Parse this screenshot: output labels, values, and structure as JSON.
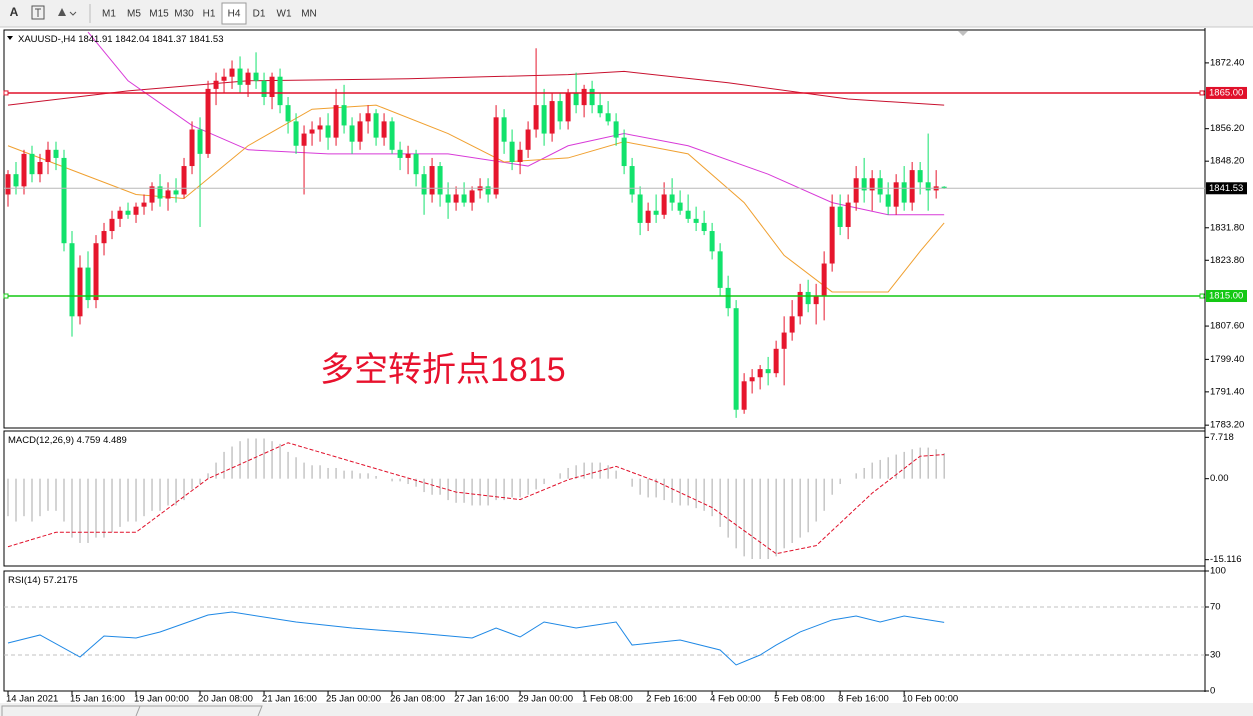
{
  "toolbar": {
    "text_tool": "A",
    "timeframes": [
      "M1",
      "M5",
      "M15",
      "M30",
      "H1",
      "H4",
      "D1",
      "W1",
      "MN"
    ],
    "active_index": 5
  },
  "chart_data": [
    {
      "type": "candlestick",
      "title": "XAUUSD-,H4",
      "annotation": "多空转折点1815",
      "up_color": "#e6162d",
      "down_color": "#12e26c",
      "xlim": [
        -0.5,
        149.6
      ],
      "ylim": [
        1782.5,
        1880.5
      ],
      "yticks": [
        {
          "value": 1872.4,
          "label": "1872.40"
        },
        {
          "value": 1856.2,
          "label": "1856.20"
        },
        {
          "value": 1848.2,
          "label": "1848.20"
        },
        {
          "value": 1831.8,
          "label": "1831.80"
        },
        {
          "value": 1823.8,
          "label": "1823.80"
        },
        {
          "value": 1807.6,
          "label": "1807.60"
        },
        {
          "value": 1799.4,
          "label": "1799.40"
        },
        {
          "value": 1791.4,
          "label": "1791.40"
        },
        {
          "value": 1783.2,
          "label": "1783.20"
        }
      ],
      "grid": false,
      "hlines": [
        {
          "value": 1865,
          "label": "1865.00",
          "color": "#e0102a"
        },
        {
          "value": 1815,
          "label": "1815.00",
          "color": "#14c814"
        }
      ],
      "last_price_color": "#b8b8b8",
      "ohlc": [
        [
          1840,
          1846,
          1837,
          1845
        ],
        [
          1845,
          1848,
          1840,
          1842
        ],
        [
          1842,
          1851,
          1840,
          1850
        ],
        [
          1850,
          1852,
          1843,
          1845
        ],
        [
          1845,
          1850,
          1843,
          1848
        ],
        [
          1848,
          1853,
          1845,
          1851
        ],
        [
          1851,
          1853,
          1846,
          1849
        ],
        [
          1849,
          1851,
          1826,
          1828
        ],
        [
          1828,
          1831,
          1805,
          1810
        ],
        [
          1810,
          1825,
          1808,
          1822
        ],
        [
          1822,
          1826,
          1812,
          1814
        ],
        [
          1814,
          1830,
          1812,
          1828
        ],
        [
          1828,
          1833,
          1825,
          1831
        ],
        [
          1831,
          1836,
          1829,
          1834
        ],
        [
          1834,
          1837,
          1832,
          1836
        ],
        [
          1836,
          1838,
          1834,
          1835
        ],
        [
          1835,
          1838,
          1833,
          1837
        ],
        [
          1837,
          1840,
          1835,
          1838
        ],
        [
          1838,
          1843,
          1836,
          1842
        ],
        [
          1842,
          1845,
          1837,
          1839
        ],
        [
          1839,
          1843,
          1836,
          1841
        ],
        [
          1841,
          1844,
          1838,
          1840
        ],
        [
          1840,
          1849,
          1839,
          1847
        ],
        [
          1847,
          1858,
          1845,
          1856
        ],
        [
          1856,
          1859,
          1832,
          1850
        ],
        [
          1850,
          1868,
          1849,
          1866
        ],
        [
          1866,
          1870,
          1862,
          1868
        ],
        [
          1868,
          1871,
          1865,
          1869
        ],
        [
          1869,
          1873,
          1866,
          1871
        ],
        [
          1871,
          1874,
          1865,
          1867
        ],
        [
          1867,
          1871,
          1864,
          1870
        ],
        [
          1870,
          1875,
          1866,
          1868
        ],
        [
          1868,
          1870,
          1862,
          1864
        ],
        [
          1864,
          1870,
          1861,
          1869
        ],
        [
          1869,
          1871,
          1860,
          1862
        ],
        [
          1862,
          1864,
          1855,
          1858
        ],
        [
          1858,
          1860,
          1850,
          1852
        ],
        [
          1852,
          1857,
          1840,
          1855
        ],
        [
          1855,
          1858,
          1852,
          1856
        ],
        [
          1856,
          1859,
          1853,
          1857
        ],
        [
          1857,
          1860,
          1851,
          1854
        ],
        [
          1854,
          1866,
          1852,
          1862
        ],
        [
          1862,
          1867,
          1855,
          1857
        ],
        [
          1857,
          1859,
          1850,
          1853
        ],
        [
          1853,
          1860,
          1851,
          1858
        ],
        [
          1858,
          1862,
          1855,
          1860
        ],
        [
          1860,
          1861,
          1852,
          1854
        ],
        [
          1854,
          1860,
          1852,
          1858
        ],
        [
          1858,
          1859,
          1850,
          1851
        ],
        [
          1851,
          1853,
          1846,
          1849
        ],
        [
          1849,
          1852,
          1845,
          1850
        ],
        [
          1850,
          1851,
          1842,
          1845
        ],
        [
          1845,
          1847,
          1835,
          1840
        ],
        [
          1840,
          1849,
          1838,
          1847
        ],
        [
          1847,
          1848,
          1837,
          1840
        ],
        [
          1840,
          1843,
          1834,
          1838
        ],
        [
          1838,
          1842,
          1836,
          1840
        ],
        [
          1840,
          1843,
          1837,
          1838
        ],
        [
          1838,
          1842,
          1836,
          1841
        ],
        [
          1841,
          1844,
          1839,
          1842
        ],
        [
          1842,
          1844,
          1838,
          1840
        ],
        [
          1840,
          1862,
          1839,
          1859
        ],
        [
          1859,
          1861,
          1850,
          1853
        ],
        [
          1853,
          1856,
          1846,
          1848
        ],
        [
          1848,
          1853,
          1845,
          1851
        ],
        [
          1851,
          1858,
          1849,
          1856
        ],
        [
          1856,
          1876,
          1854,
          1862
        ],
        [
          1862,
          1866,
          1852,
          1855
        ],
        [
          1855,
          1865,
          1853,
          1863
        ],
        [
          1863,
          1865,
          1856,
          1858
        ],
        [
          1858,
          1866,
          1856,
          1865
        ],
        [
          1865,
          1870,
          1860,
          1862
        ],
        [
          1862,
          1867,
          1859,
          1866
        ],
        [
          1866,
          1868,
          1860,
          1862
        ],
        [
          1862,
          1865,
          1859,
          1860
        ],
        [
          1860,
          1863,
          1857,
          1858
        ],
        [
          1858,
          1860,
          1852,
          1854
        ],
        [
          1854,
          1856,
          1845,
          1847
        ],
        [
          1847,
          1849,
          1838,
          1840
        ],
        [
          1840,
          1842,
          1830,
          1833
        ],
        [
          1833,
          1838,
          1831,
          1836
        ],
        [
          1836,
          1840,
          1833,
          1835
        ],
        [
          1835,
          1843,
          1834,
          1840
        ],
        [
          1840,
          1844,
          1836,
          1838
        ],
        [
          1838,
          1841,
          1835,
          1836
        ],
        [
          1836,
          1840,
          1833,
          1834
        ],
        [
          1834,
          1837,
          1831,
          1833
        ],
        [
          1833,
          1836,
          1830,
          1831
        ],
        [
          1831,
          1833,
          1824,
          1826
        ],
        [
          1826,
          1828,
          1815,
          1817
        ],
        [
          1817,
          1820,
          1810,
          1812
        ],
        [
          1812,
          1814,
          1785,
          1787
        ],
        [
          1787,
          1796,
          1786,
          1794
        ],
        [
          1794,
          1797,
          1791,
          1795
        ],
        [
          1795,
          1798,
          1792,
          1797
        ],
        [
          1797,
          1800,
          1793,
          1796
        ],
        [
          1796,
          1804,
          1795,
          1802
        ],
        [
          1802,
          1810,
          1793,
          1806
        ],
        [
          1806,
          1814,
          1804,
          1810
        ],
        [
          1810,
          1818,
          1808,
          1816
        ],
        [
          1816,
          1819,
          1811,
          1813
        ],
        [
          1813,
          1818,
          1808,
          1815
        ],
        [
          1815,
          1826,
          1809,
          1823
        ],
        [
          1823,
          1840,
          1821,
          1837
        ],
        [
          1837,
          1840,
          1830,
          1832
        ],
        [
          1832,
          1840,
          1829,
          1838
        ],
        [
          1838,
          1847,
          1836,
          1844
        ],
        [
          1844,
          1849,
          1838,
          1841
        ],
        [
          1841,
          1846,
          1836,
          1844
        ],
        [
          1844,
          1846,
          1838,
          1840
        ],
        [
          1840,
          1843,
          1835,
          1837
        ],
        [
          1837,
          1845,
          1835,
          1843
        ],
        [
          1843,
          1847,
          1836,
          1838
        ],
        [
          1838,
          1848,
          1836,
          1846
        ],
        [
          1846,
          1848,
          1840,
          1843
        ],
        [
          1843,
          1855,
          1836,
          1841
        ],
        [
          1841,
          1846,
          1839,
          1842
        ],
        [
          1841.91,
          1842.04,
          1841.37,
          1841.53
        ]
      ],
      "series": [
        {
          "color": "#c8102e",
          "x": [
            0,
            15,
            30,
            50,
            70,
            77,
            90,
            105,
            117
          ],
          "values": [
            1862,
            1865.5,
            1868,
            1868.5,
            1869.5,
            1870.3,
            1867.5,
            1863.5,
            1862
          ]
        },
        {
          "color": "#d83ad8",
          "x": [
            10,
            15,
            23,
            30,
            40,
            55,
            65,
            70,
            77,
            85,
            95,
            103,
            110,
            117
          ],
          "values": [
            1880,
            1868,
            1857,
            1851,
            1850,
            1850,
            1847,
            1852,
            1855,
            1852,
            1845,
            1838,
            1835,
            1835
          ]
        },
        {
          "color": "#f0a030",
          "x": [
            0,
            8,
            16,
            22,
            30,
            38,
            46,
            55,
            62,
            70,
            77,
            85,
            92,
            97,
            103,
            110,
            114,
            117
          ],
          "values": [
            1852,
            1846,
            1840,
            1839,
            1852,
            1861,
            1862,
            1855,
            1848,
            1849,
            1853,
            1850,
            1838,
            1825,
            1816,
            1816,
            1826,
            1833
          ]
        }
      ]
    },
    {
      "type": "bar",
      "title": "MACD(12,26,9)",
      "color": "#a8a8a8",
      "xlim": [
        -0.5,
        149.6
      ],
      "ylim": [
        -16.3,
        8.9
      ],
      "yticks": [
        7.718,
        {
          "value": 0,
          "label": "0.00"
        },
        -15.116
      ],
      "grid": false,
      "values": [
        -7,
        -8,
        -7,
        -8,
        -7,
        -6,
        -6,
        -8,
        -11,
        -12,
        -12,
        -11,
        -11,
        -10,
        -9,
        -8,
        -8,
        -7,
        -6,
        -6,
        -5,
        -5,
        -4,
        -2,
        -1,
        1,
        3,
        5,
        6,
        7,
        7.5,
        7.5,
        7.5,
        7,
        6.5,
        5,
        4,
        3,
        2.5,
        2.5,
        2,
        2,
        1.5,
        1.5,
        1,
        1,
        0.5,
        0,
        -0.5,
        -0.5,
        -1,
        -1.5,
        -2.5,
        -3,
        -3,
        -4,
        -4.5,
        -4.5,
        -5,
        -5,
        -5,
        -4,
        -4,
        -3.5,
        -3.5,
        -3,
        -2,
        -1,
        0,
        1,
        2,
        2.5,
        3,
        3,
        3,
        2.5,
        1.5,
        0,
        -1.5,
        -3,
        -3.5,
        -3.5,
        -4,
        -4.5,
        -5,
        -5,
        -5.5,
        -6,
        -7,
        -9,
        -11,
        -13,
        -14.5,
        -15,
        -15,
        -15,
        -14.5,
        -13,
        -12,
        -11,
        -10,
        -8,
        -6,
        -3,
        -1,
        0,
        1,
        2,
        3,
        3.5,
        4,
        4.5,
        5,
        5.5,
        5.8,
        5.8,
        5.5,
        4.759
      ],
      "signal": {
        "color": "#e0102a",
        "x": [
          0,
          6,
          16,
          25,
          35,
          45,
          56,
          64,
          70,
          76,
          81,
          88,
          96,
          101,
          108,
          114,
          117
        ],
        "values": [
          -12.7,
          -10,
          -10,
          0,
          6.7,
          2.3,
          -2.5,
          -3.9,
          -0.2,
          2.3,
          -0.5,
          -5.4,
          -14,
          -12.5,
          -2.7,
          4.2,
          4.489
        ]
      }
    },
    {
      "type": "line",
      "title": "RSI(14)",
      "xlim": [
        -0.5,
        149.6
      ],
      "ylim": [
        0,
        100
      ],
      "yticks": [
        100,
        70,
        30,
        0
      ],
      "grid": true,
      "xticks": [
        {
          "value": 0,
          "label": "14 Jan 2021"
        },
        {
          "value": 8,
          "label": "15 Jan 16:00"
        },
        {
          "value": 16,
          "label": "19 Jan 00:00"
        },
        {
          "value": 24,
          "label": "20 Jan 08:00"
        },
        {
          "value": 32,
          "label": "21 Jan 16:00"
        },
        {
          "value": 40,
          "label": "25 Jan 00:00"
        },
        {
          "value": 48,
          "label": "26 Jan 08:00"
        },
        {
          "value": 56,
          "label": "27 Jan 16:00"
        },
        {
          "value": 64,
          "label": "29 Jan 00:00"
        },
        {
          "value": 72,
          "label": "1 Feb 08:00"
        },
        {
          "value": 80,
          "label": "2 Feb 16:00"
        },
        {
          "value": 88,
          "label": "4 Feb 00:00"
        },
        {
          "value": 96,
          "label": "5 Feb 08:00"
        },
        {
          "value": 104,
          "label": "8 Feb 16:00"
        },
        {
          "value": 112,
          "label": "10 Feb 00:00"
        }
      ],
      "series": [
        {
          "color": "#1e88e5",
          "x": [
            0,
            4,
            9,
            12,
            16,
            19,
            25,
            28,
            36,
            43,
            51,
            58,
            61,
            64,
            67,
            71,
            76,
            78,
            84,
            89,
            91,
            94,
            96,
            99,
            103,
            106,
            109,
            112,
            117
          ],
          "values": [
            40,
            46.7,
            28.3,
            45.8,
            44.2,
            49.2,
            63.3,
            65.8,
            57.5,
            52.5,
            48.3,
            44.2,
            52.5,
            45,
            57.5,
            52.5,
            57.5,
            38.3,
            42.5,
            34.2,
            21.7,
            30,
            38.3,
            49.2,
            59.2,
            62.5,
            57.5,
            62.5,
            57.2175
          ]
        }
      ]
    }
  ]
}
